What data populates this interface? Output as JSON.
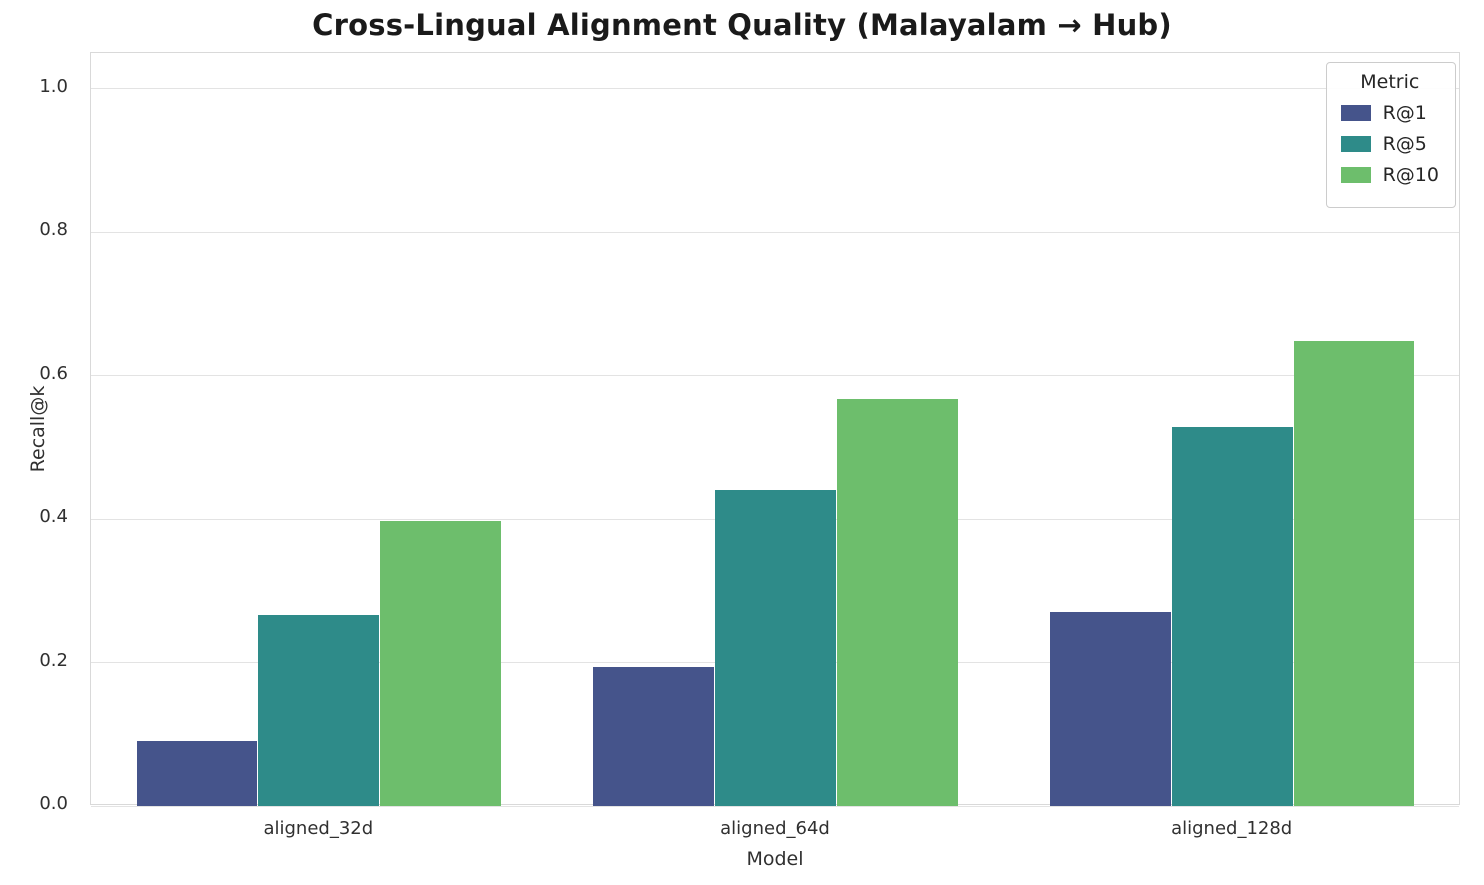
{
  "title": "Cross-Lingual Alignment Quality (Malayalam → Hub)",
  "chart_data": {
    "type": "bar",
    "title": "Cross-Lingual Alignment Quality (Malayalam → Hub)",
    "xlabel": "Model",
    "ylabel": "Recall@k",
    "categories": [
      "aligned_32d",
      "aligned_64d",
      "aligned_128d"
    ],
    "series": [
      {
        "name": "R@1",
        "color": "#45548b",
        "values": [
          0.091,
          0.194,
          0.271
        ]
      },
      {
        "name": "R@5",
        "color": "#2e8b89",
        "values": [
          0.267,
          0.44,
          0.529
        ]
      },
      {
        "name": "R@10",
        "color": "#6dbe6c",
        "values": [
          0.398,
          0.567,
          0.648
        ]
      }
    ],
    "ylim": [
      0,
      1.05
    ],
    "yticks": [
      "0.0",
      "0.2",
      "0.4",
      "0.6",
      "0.8",
      "1.0"
    ],
    "grid": "horizontal",
    "legend_title": "Metric",
    "legend_position": "upper right"
  }
}
